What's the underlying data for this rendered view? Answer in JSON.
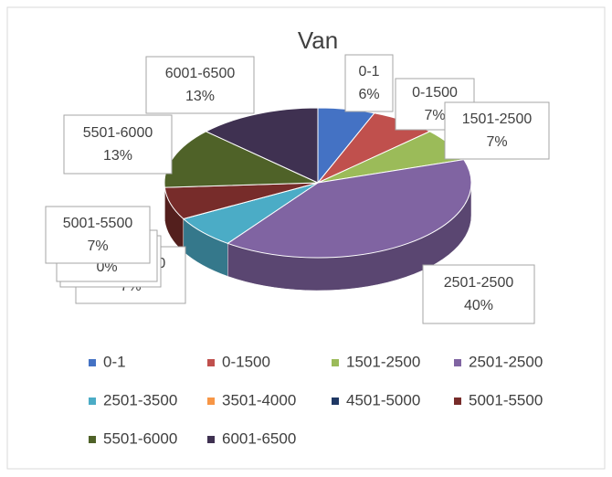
{
  "chart_data": {
    "type": "pie",
    "title": "Van",
    "categories": [
      "0-1",
      "0-1500",
      "1501-2500",
      "2501-2500",
      "2501-3500",
      "3501-4000",
      "4501-5000",
      "5001-5500",
      "5501-6000",
      "6001-6500"
    ],
    "values": [
      6,
      7,
      7,
      40,
      7,
      0,
      0,
      7,
      13,
      13
    ],
    "value_labels": [
      "6%",
      "7%",
      "7%",
      "40%",
      "7%",
      "0%",
      "0%",
      "7%",
      "13%",
      "13%"
    ],
    "colors": [
      "#4472c4",
      "#c0504d",
      "#9bbb59",
      "#8064a2",
      "#4bacc6",
      "#f79646",
      "#1f3864",
      "#772c2a",
      "#4f6228",
      "#3f3151"
    ],
    "legend": "bottom"
  }
}
